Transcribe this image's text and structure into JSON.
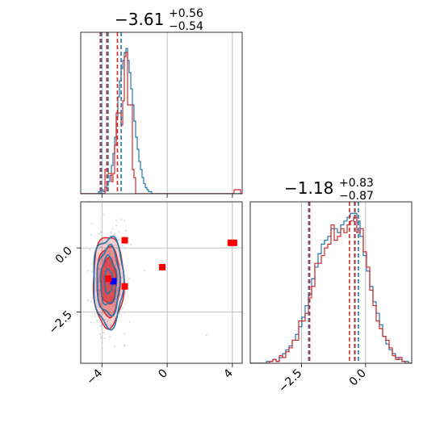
{
  "chart_data": {
    "type": "corner",
    "colors": {
      "series_a": "#1f77b4",
      "series_b": "#d62728",
      "marker_blue": "#0000ff",
      "marker_red": "#ff0000",
      "grid": "#b0b0b0"
    },
    "series": [
      {
        "id": "series_a"
      },
      {
        "id": "series_b"
      }
    ],
    "param1_label": {
      "center": "−3.61",
      "plus": "+0.56",
      "minus": "−0.54"
    },
    "param2_label": {
      "center": "−1.18",
      "plus": "+0.83",
      "minus": "−0.87"
    },
    "param1_axis": {
      "range": [
        -5.3,
        4.6
      ],
      "ticks": [
        -4,
        0,
        4
      ],
      "tick_labels": [
        "−4",
        "0",
        "4"
      ]
    },
    "param2_axis": {
      "range": [
        -4.5,
        1.8
      ],
      "ticks": [
        -2.5,
        0.0
      ],
      "tick_labels": [
        "−2.5",
        "0.0"
      ]
    },
    "hist1": {
      "bin_start": -5.3,
      "bin_width": 0.099,
      "series_a_counts": [
        0,
        0,
        0,
        0,
        0,
        0,
        0,
        0,
        0,
        0,
        0,
        1,
        0,
        2,
        1,
        3,
        4,
        6,
        9,
        14,
        20,
        28,
        38,
        48,
        56,
        62,
        66,
        70,
        72,
        66,
        60,
        52,
        44,
        36,
        28,
        22,
        16,
        12,
        8,
        5,
        3,
        2,
        1,
        1,
        0,
        0,
        0,
        0,
        0,
        0,
        0,
        0,
        0,
        0,
        0,
        0,
        0,
        0,
        0,
        0,
        0,
        0,
        0,
        0,
        0,
        0,
        0,
        0,
        0,
        0,
        0,
        0,
        0,
        0,
        0,
        0,
        0,
        0,
        0,
        0,
        0,
        0,
        0,
        0,
        0,
        0,
        0,
        0,
        0,
        0,
        0,
        0,
        0,
        0,
        0,
        0,
        0,
        0,
        0,
        0
      ],
      "series_b_counts": [
        0,
        0,
        0,
        0,
        0,
        0,
        0,
        0,
        0,
        0,
        0,
        0,
        0,
        0,
        0,
        12,
        12,
        10,
        10,
        6,
        10,
        24,
        40,
        40,
        40,
        34,
        46,
        68,
        70,
        44,
        44,
        44,
        12,
        8,
        0,
        0,
        0,
        0,
        0,
        0,
        0,
        0,
        0,
        0,
        0,
        0,
        0,
        0,
        0,
        0,
        0,
        0,
        0,
        0,
        0,
        0,
        0,
        0,
        0,
        0,
        0,
        0,
        0,
        0,
        0,
        0,
        0,
        0,
        0,
        0,
        0,
        0,
        0,
        0,
        0,
        0,
        0,
        0,
        0,
        0,
        0,
        0,
        0,
        0,
        0,
        0,
        0,
        0,
        0,
        0,
        0,
        0,
        0,
        0,
        0,
        2,
        2,
        2,
        2,
        0
      ],
      "ymax": 80
    },
    "hist2": {
      "bin_start": -4.5,
      "bin_width": 0.126,
      "series_a_counts": [
        0,
        0,
        0,
        0,
        0,
        1,
        1,
        2,
        1,
        3,
        5,
        7,
        9,
        12,
        15,
        19,
        24,
        30,
        36,
        44,
        50,
        57,
        62,
        64,
        66,
        70,
        70,
        68,
        72,
        74,
        76,
        78,
        78,
        74,
        66,
        56,
        48,
        40,
        32,
        26,
        20,
        14,
        10,
        7,
        5,
        3,
        2,
        1,
        1,
        0
      ],
      "series_b_counts": [
        0,
        0,
        0,
        0,
        0,
        0,
        1,
        2,
        1,
        4,
        3,
        6,
        8,
        12,
        12,
        22,
        22,
        26,
        34,
        40,
        52,
        52,
        56,
        60,
        62,
        72,
        64,
        66,
        70,
        68,
        72,
        74,
        76,
        68,
        70,
        58,
        50,
        38,
        30,
        22,
        18,
        14,
        12,
        8,
        4,
        2,
        3,
        1,
        0,
        0
      ],
      "ymax": 84
    },
    "hist1_quantile_lines": {
      "series_a": [
        -4.02,
        -3.62,
        -2.82
      ],
      "series_b": [
        -4.1,
        -3.7,
        -3.05
      ]
    },
    "hist2_quantile_lines": {
      "series_a": [
        -2.22,
        -0.43,
        -0.28
      ],
      "series_b": [
        -2.18,
        -0.41,
        -0.63
      ]
    },
    "scatter_center": {
      "x": -3.6,
      "y": -1.3
    },
    "scatter_spread": {
      "x": 0.45,
      "y": 0.85
    },
    "outlier_points": [
      {
        "x": 4.1,
        "y": 0.2
      },
      {
        "x": 2.4,
        "y": -3.4
      },
      {
        "x": -2.8,
        "y": 1.1
      }
    ],
    "markers": [
      {
        "x": -3.3,
        "y": -1.3,
        "color": "marker_blue"
      },
      {
        "x": -3.6,
        "y": -1.2,
        "color": "marker_red"
      },
      {
        "x": -2.6,
        "y": 0.3,
        "color": "marker_red"
      },
      {
        "x": -2.6,
        "y": -1.5,
        "color": "marker_red"
      },
      {
        "x": -0.3,
        "y": -0.75,
        "color": "marker_red"
      },
      {
        "x": 3.9,
        "y": 0.2,
        "color": "marker_red"
      },
      {
        "x": 4.1,
        "y": 0.2,
        "color": "marker_red"
      }
    ],
    "grid": true
  }
}
